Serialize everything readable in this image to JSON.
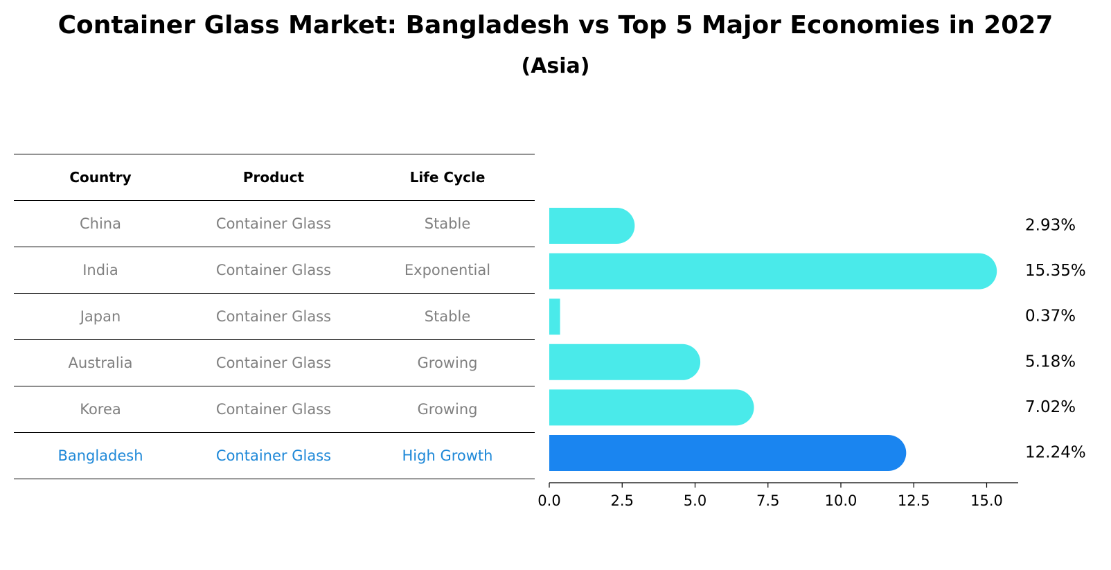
{
  "title": "Container Glass Market: Bangladesh vs Top 5 Major Economies in 2027",
  "subtitle": "(Asia)",
  "table": {
    "headers": [
      "Country",
      "Product",
      "Life Cycle"
    ],
    "rows": [
      {
        "country": "China",
        "product": "Container Glass",
        "life_cycle": "Stable"
      },
      {
        "country": "India",
        "product": "Container Glass",
        "life_cycle": "Exponential"
      },
      {
        "country": "Japan",
        "product": "Container Glass",
        "life_cycle": "Stable"
      },
      {
        "country": "Australia",
        "product": "Container Glass",
        "life_cycle": "Growing"
      },
      {
        "country": "Korea",
        "product": "Container Glass",
        "life_cycle": "Growing"
      },
      {
        "country": "Bangladesh",
        "product": "Container Glass",
        "life_cycle": "High Growth"
      }
    ]
  },
  "chart_data": {
    "type": "bar",
    "orientation": "horizontal",
    "categories": [
      "China",
      "India",
      "Japan",
      "Australia",
      "Korea",
      "Bangladesh"
    ],
    "values": [
      2.93,
      15.35,
      0.37,
      5.18,
      7.02,
      12.24
    ],
    "value_labels": [
      "2.93%",
      "15.35%",
      "0.37%",
      "5.18%",
      "7.02%",
      "12.24%"
    ],
    "xlim": [
      0,
      16.2
    ],
    "xticks": [
      0.0,
      2.5,
      5.0,
      7.5,
      10.0,
      12.5,
      15.0
    ],
    "xtick_labels": [
      "0.0",
      "2.5",
      "5.0",
      "7.5",
      "10.0",
      "12.5",
      "15.0"
    ],
    "colors": {
      "default": "#4aeaea",
      "highlight": "#1a85f0"
    },
    "highlight_category": "Bangladesh"
  }
}
